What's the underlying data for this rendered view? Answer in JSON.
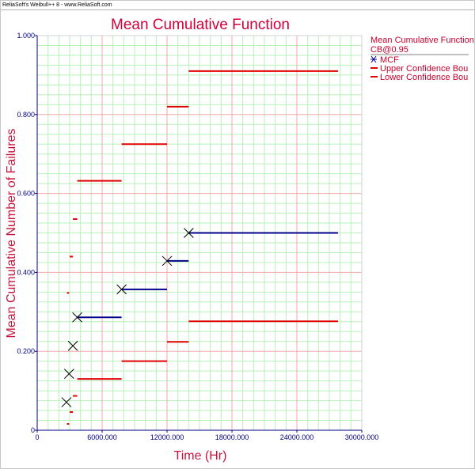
{
  "header": {
    "text": "ReliaSoft's Weibull++ 8 - www.ReliaSoft.com"
  },
  "chart_data": {
    "type": "scatter",
    "title": "Mean Cumulative Function",
    "xlabel": "Time (Hr)",
    "ylabel": "Mean Cumulative Number of Failures",
    "xlim": [
      0,
      30000
    ],
    "ylim": [
      0,
      1
    ],
    "x_ticks": [
      {
        "value": 0,
        "label": "0"
      },
      {
        "value": 6000,
        "label": "6000.000"
      },
      {
        "value": 12000,
        "label": "12000.000"
      },
      {
        "value": 18000,
        "label": "18000.000"
      },
      {
        "value": 24000,
        "label": "24000.000"
      },
      {
        "value": 30000,
        "label": "30000.000"
      }
    ],
    "y_ticks": [
      {
        "value": 0,
        "label": "0"
      },
      {
        "value": 0.2,
        "label": "0.200"
      },
      {
        "value": 0.4,
        "label": "0.400"
      },
      {
        "value": 0.6,
        "label": "0.600"
      },
      {
        "value": 0.8,
        "label": "0.800"
      },
      {
        "value": 1.0,
        "label": "1.000"
      }
    ],
    "grid": true,
    "legend": {
      "placement": "right",
      "title": "Mean Cumulative Function",
      "subtitle": "CB@0.95",
      "entries": [
        {
          "label": "MCF",
          "color": "#00008b",
          "marker": "cross"
        },
        {
          "label": "Upper Confidence Bou",
          "color": "#e00000",
          "marker": "line"
        },
        {
          "label": "Lower Confidence Bou",
          "color": "#e00000",
          "marker": "line"
        }
      ]
    },
    "series": [
      {
        "name": "MCF",
        "color": "#00008b",
        "points": [
          {
            "x": 2700,
            "y": 0.071
          },
          {
            "x": 2950,
            "y": 0.143
          },
          {
            "x": 3300,
            "y": 0.214
          },
          {
            "x": 3700,
            "y": 0.286
          },
          {
            "x": 7800,
            "y": 0.357
          },
          {
            "x": 12000,
            "y": 0.429
          },
          {
            "x": 14000,
            "y": 0.5
          }
        ],
        "segments": [
          {
            "x1": 3700,
            "x2": 7800,
            "y": 0.286
          },
          {
            "x1": 7800,
            "x2": 12000,
            "y": 0.357
          },
          {
            "x1": 12000,
            "x2": 14000,
            "y": 0.429
          },
          {
            "x1": 14000,
            "x2": 27800,
            "y": 0.5
          }
        ]
      },
      {
        "name": "Upper Confidence Bou",
        "color": "#e00000",
        "segments": [
          {
            "x1": 2750,
            "x2": 2950,
            "y": 0.348
          },
          {
            "x1": 3000,
            "x2": 3300,
            "y": 0.44
          },
          {
            "x1": 3300,
            "x2": 3700,
            "y": 0.535
          },
          {
            "x1": 3700,
            "x2": 7800,
            "y": 0.632
          },
          {
            "x1": 7800,
            "x2": 12000,
            "y": 0.725
          },
          {
            "x1": 12000,
            "x2": 14000,
            "y": 0.82
          },
          {
            "x1": 14000,
            "x2": 27800,
            "y": 0.91
          }
        ]
      },
      {
        "name": "Lower Confidence Bou",
        "color": "#e00000",
        "segments": [
          {
            "x1": 2750,
            "x2": 2950,
            "y": 0.016
          },
          {
            "x1": 3000,
            "x2": 3300,
            "y": 0.046
          },
          {
            "x1": 3300,
            "x2": 3700,
            "y": 0.087
          },
          {
            "x1": 3700,
            "x2": 7800,
            "y": 0.13
          },
          {
            "x1": 7800,
            "x2": 12000,
            "y": 0.175
          },
          {
            "x1": 12000,
            "x2": 14000,
            "y": 0.224
          },
          {
            "x1": 14000,
            "x2": 27800,
            "y": 0.276
          }
        ]
      }
    ]
  }
}
